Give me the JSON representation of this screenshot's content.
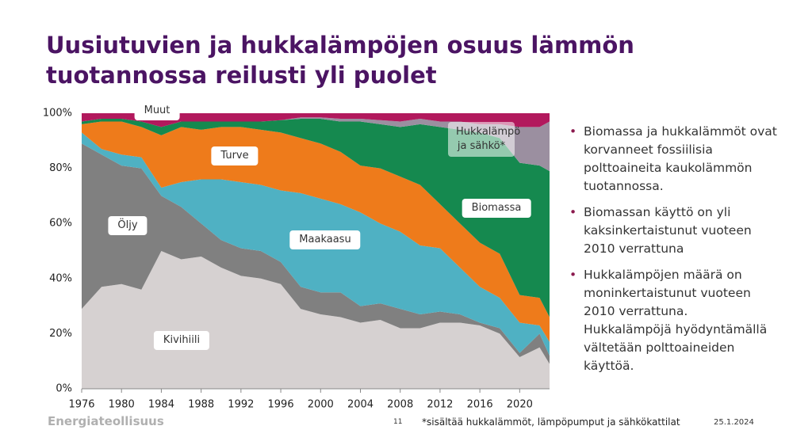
{
  "slide": {
    "title": "Uusiutuvien ja hukkalämpöjen osuus lämmön tuotannossa reilusti yli puolet",
    "bullets": [
      "Biomassa ja hukkalämmöt ovat korvanneet fossiilisia polttoaineita kaukolämmön tuotannossa.",
      "Biomassan käyttö on yli kaksinkertaistunut vuoteen 2010 verrattuna",
      "Hukkalämpöjen määrä on moninkertaistunut vuoteen 2010 verrattuna. Hukkalämpöjä hyödyntämällä vältetään polttoaineiden käyttöä."
    ],
    "logo": "Energiateollisuus",
    "page_number": "11",
    "footnote": "*sisältää hukkalämmöt, lämpöpumput ja sähkökattilat",
    "date": "25.1.2024"
  },
  "chart_data": {
    "type": "stacked_area",
    "x": [
      1976,
      1978,
      1980,
      1982,
      1984,
      1986,
      1988,
      1990,
      1992,
      1994,
      1996,
      1998,
      2000,
      2002,
      2004,
      2006,
      2008,
      2010,
      2012,
      2014,
      2016,
      2018,
      2020,
      2022,
      2023
    ],
    "series": [
      {
        "name": "Kivihiili",
        "color": "#d6d1d1",
        "values": [
          29,
          37,
          38,
          36,
          50,
          47,
          48,
          44,
          41,
          40,
          38,
          29,
          27,
          26,
          24,
          25,
          22,
          22,
          24,
          24,
          23,
          20,
          11.5,
          15,
          9
        ]
      },
      {
        "name": "Öljy",
        "color": "#808080",
        "values": [
          60,
          48,
          43,
          44,
          20,
          19,
          12,
          10,
          10,
          10,
          8,
          8,
          8,
          9,
          6,
          6,
          7,
          5,
          4,
          3,
          1,
          2,
          1.5,
          5,
          3
        ]
      },
      {
        "name": "Maakaasu",
        "color": "#4fb1c3",
        "values": [
          4,
          2,
          4,
          4,
          3,
          9,
          16,
          22,
          24,
          24,
          26,
          34,
          34,
          32,
          34,
          29,
          28,
          25,
          23,
          17,
          13,
          11,
          11,
          3,
          5
        ]
      },
      {
        "name": "Turve",
        "color": "#ee7b1b",
        "values": [
          3,
          10,
          12,
          11,
          19,
          20,
          18,
          19,
          20,
          20,
          21,
          20,
          20,
          19,
          17,
          20,
          20,
          22,
          16,
          16,
          16,
          16,
          10,
          10,
          9
        ]
      },
      {
        "name": "Biomassa",
        "color": "#15894f",
        "values": [
          1,
          1,
          1,
          2,
          3,
          2,
          3,
          2,
          2,
          3,
          4.5,
          7,
          9,
          11,
          16,
          16,
          18,
          22,
          28,
          34,
          40,
          42,
          48,
          48,
          53
        ]
      },
      {
        "name": "Hukkalämpö ja sähkö*",
        "color": "#9b8fa0",
        "values": [
          0,
          0,
          0,
          0,
          0,
          0,
          0,
          0,
          0,
          0,
          0,
          0.5,
          0.5,
          1,
          1,
          1.5,
          2,
          2,
          2,
          3,
          3,
          5,
          13,
          14,
          18
        ]
      },
      {
        "name": "Muut",
        "color": "#b2195d",
        "values": [
          3,
          2,
          2,
          3,
          5,
          3,
          3,
          3,
          3,
          3,
          2.5,
          1.5,
          1.5,
          2,
          2,
          2.5,
          3,
          2,
          3,
          3,
          4,
          4,
          5,
          5,
          3
        ]
      }
    ],
    "xlim": [
      1976,
      2023
    ],
    "xticks": [
      1976,
      1980,
      1984,
      1988,
      1992,
      1996,
      2000,
      2004,
      2008,
      2012,
      2016,
      2020
    ],
    "ylim": [
      0,
      100
    ],
    "yticks": [
      {
        "value": 0,
        "label": "0%"
      },
      {
        "value": 20,
        "label": "20%"
      },
      {
        "value": 40,
        "label": "40%"
      },
      {
        "value": 60,
        "label": "60%"
      },
      {
        "value": 80,
        "label": "80%"
      },
      {
        "value": 100,
        "label": "100%"
      }
    ]
  }
}
